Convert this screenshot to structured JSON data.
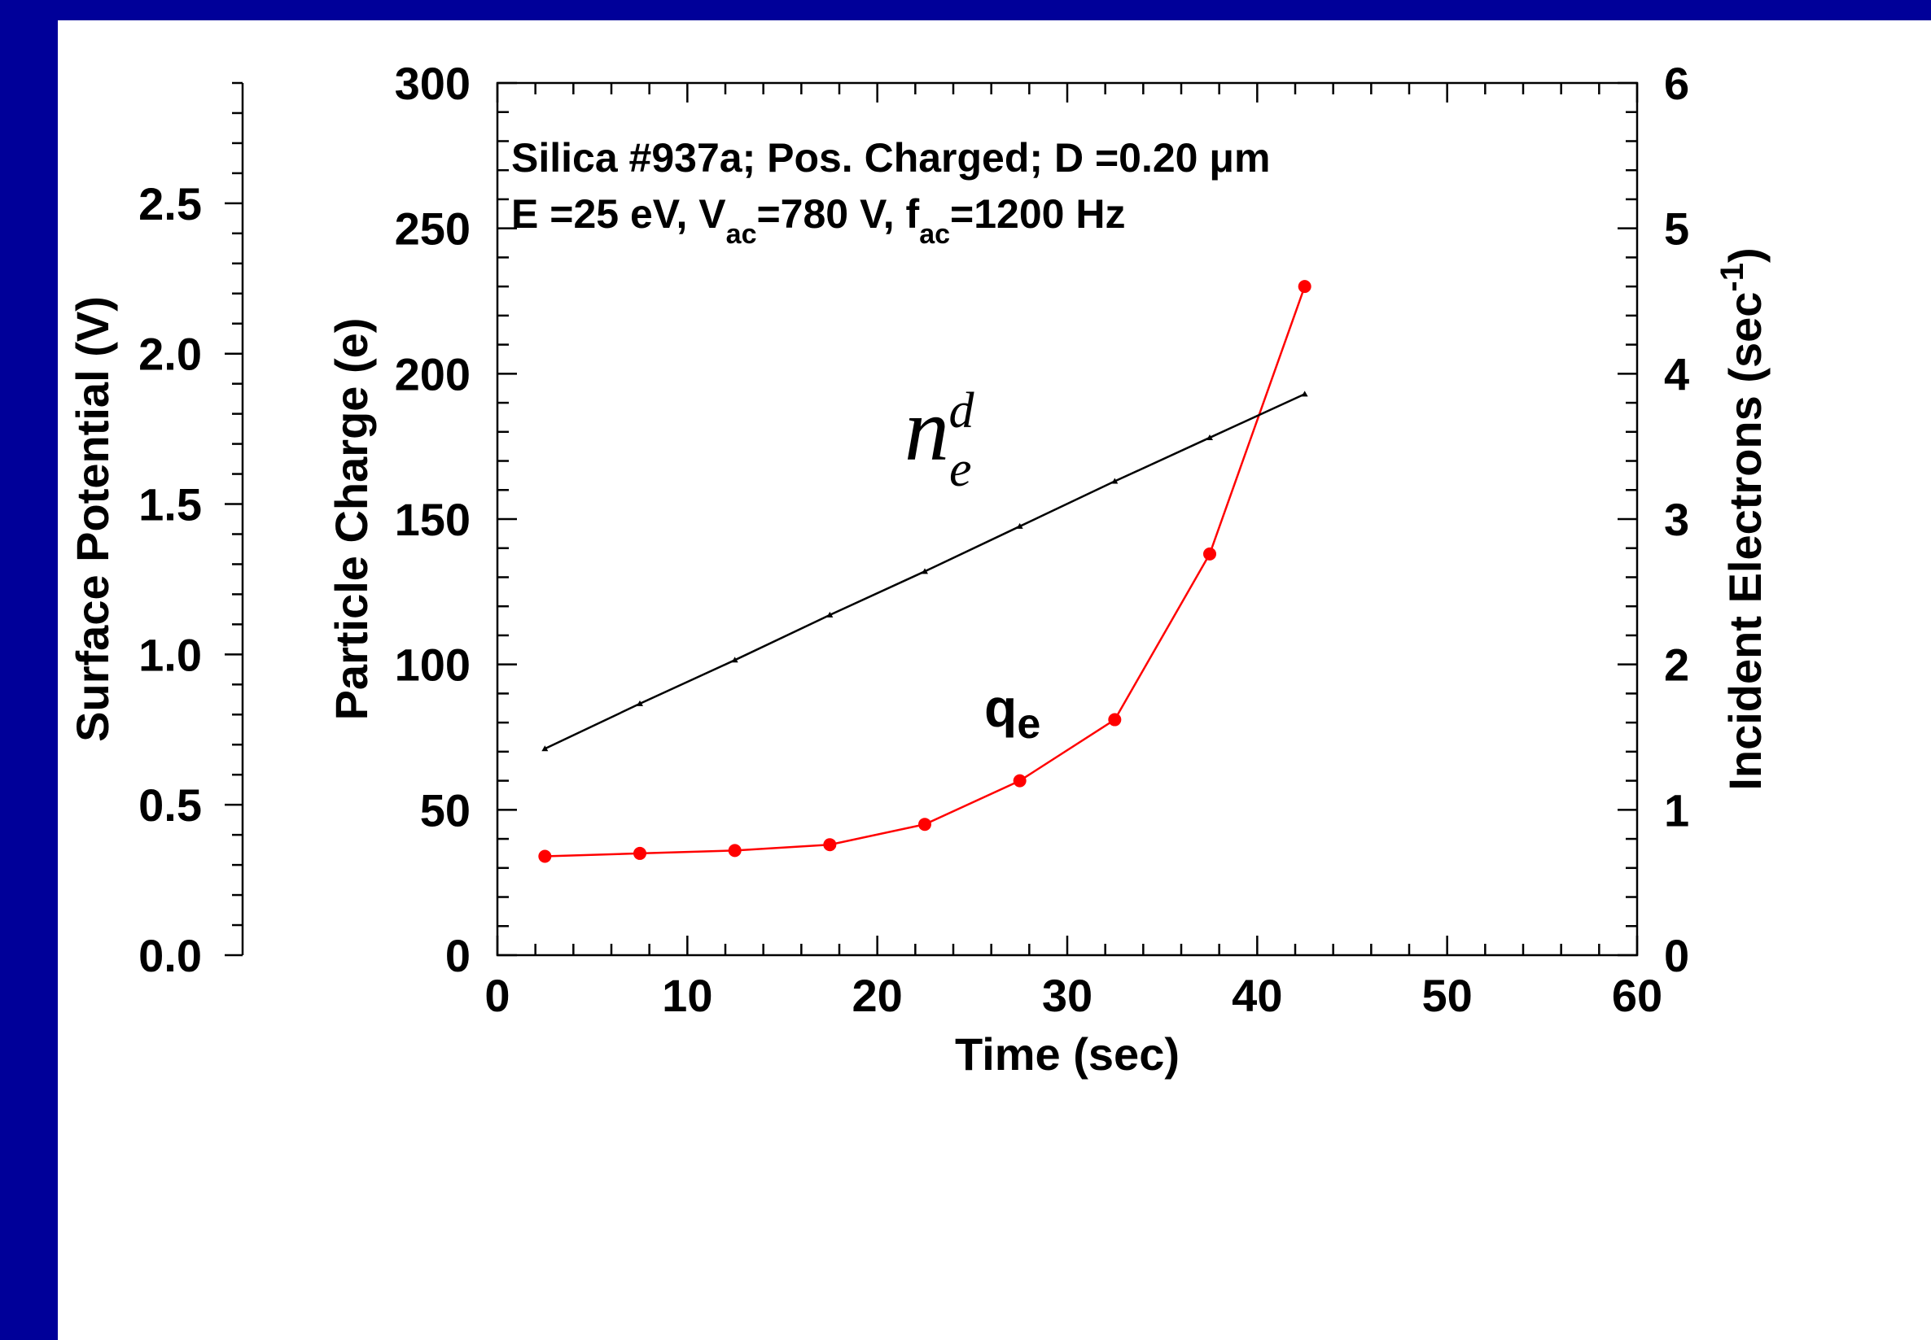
{
  "chart_data": {
    "type": "line",
    "xlabel": "Time (sec)",
    "ylabel": "Particle Charge (e)",
    "ylabel_left": "Surface Potential (V)",
    "ylabel_right_base": "Incident Electrons (sec",
    "ylabel_right_exp": "-1",
    "ylabel_right_close": ")",
    "xlim": [
      0,
      60
    ],
    "ylim": [
      0,
      300
    ],
    "ylim_left": [
      0,
      2.9
    ],
    "ylim_right": [
      0,
      6
    ],
    "x_ticks": [
      "0",
      "10",
      "20",
      "30",
      "40",
      "50",
      "60"
    ],
    "y_ticks": [
      "0",
      "50",
      "100",
      "150",
      "200",
      "250",
      "300"
    ],
    "left_ticks": [
      "0.0",
      "0.5",
      "1.0",
      "1.5",
      "2.0",
      "2.5"
    ],
    "right_ticks": [
      "0",
      "1",
      "2",
      "3",
      "4",
      "5",
      "6"
    ],
    "annotation": {
      "line1": "Silica #937a; Pos. Charged; D =0.20 μm",
      "line2_e": "E =25 eV, V",
      "line2_ac1": "ac",
      "line2_v": "=780 V, f",
      "line2_ac2": "ac",
      "line2_f": "=1200 Hz"
    },
    "series": [
      {
        "label": "q",
        "label_sub": "e",
        "color": "#ff0000",
        "x": [
          2.5,
          7.5,
          12.5,
          17.5,
          22.5,
          27.5,
          32.5,
          37.5,
          42.5
        ],
        "y": [
          34,
          35,
          36,
          38,
          45,
          60,
          81,
          138,
          230
        ]
      },
      {
        "label": "n",
        "label_sub": "e",
        "label_sup": "d",
        "color": "#000000",
        "x": [
          2.5,
          7.5,
          12.5,
          17.5,
          22.5,
          27.5,
          32.5,
          37.5,
          42.5
        ],
        "y": [
          71,
          86.5,
          101.5,
          117,
          132,
          147.5,
          163,
          178,
          193
        ]
      }
    ]
  }
}
